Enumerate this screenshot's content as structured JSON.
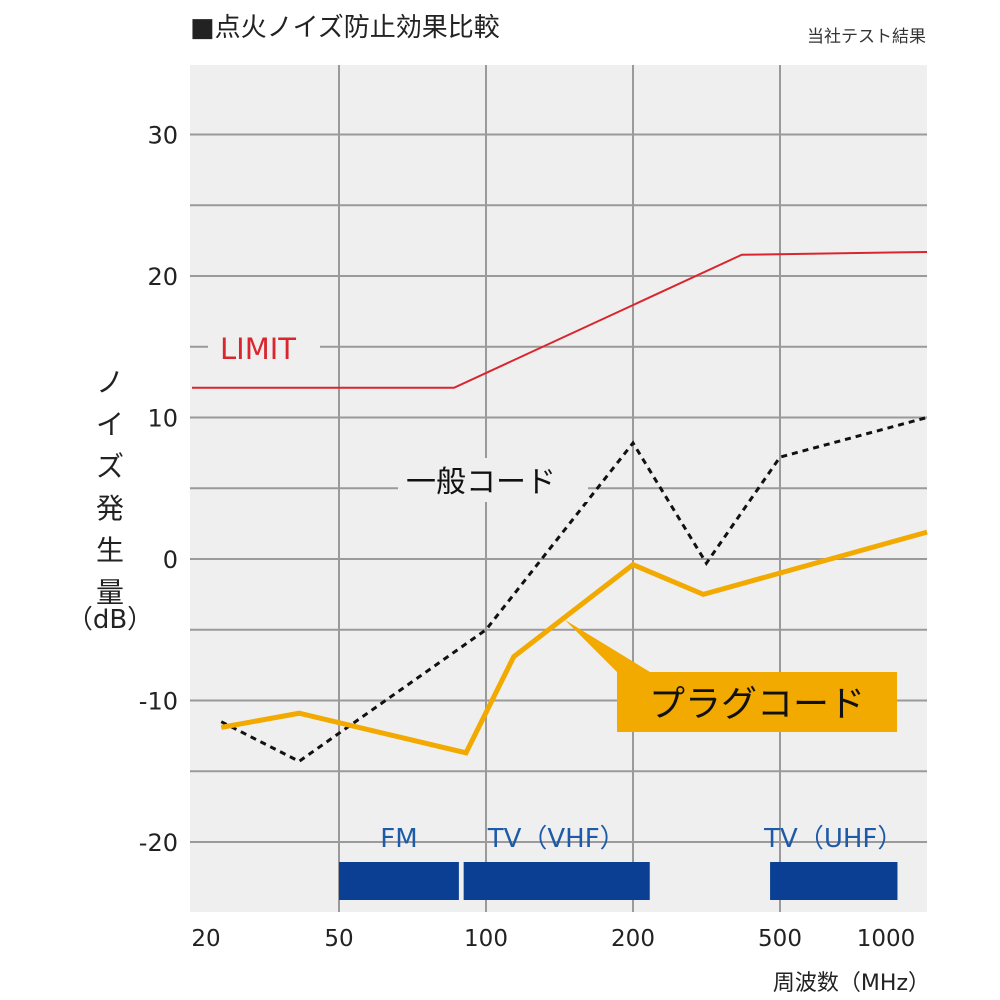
{
  "chart_data": {
    "type": "line",
    "title": "■点火ノイズ防止効果比較",
    "subtitle": "当社テスト結果",
    "xlabel": "周波数（MHz）",
    "ylabel": "ノイズ発生量（dB）",
    "x_scale": "categorical-log (equally spaced ticks)",
    "x_ticks": [
      20,
      50,
      100,
      200,
      500,
      1000
    ],
    "y_ticks": [
      30,
      20,
      10,
      0,
      -10,
      -20
    ],
    "ylim": [
      -25,
      35
    ],
    "grid": true,
    "series": [
      {
        "name": "LIMIT",
        "color": "#d9262e",
        "style": "solid",
        "x": [
          20,
          86,
          394,
          1000
        ],
        "y": [
          12.1,
          12.1,
          21.5,
          21.7
        ]
      },
      {
        "name": "一般コード",
        "color": "#111111",
        "style": "dotted",
        "x": [
          24,
          39,
          100,
          200,
          316,
          500,
          1000
        ],
        "y": [
          -11.5,
          -14.3,
          -5.0,
          8.2,
          -0.3,
          7.2,
          10.0
        ]
      },
      {
        "name": "プラグコード",
        "color": "#f2a900",
        "style": "solid",
        "x": [
          24,
          39,
          91,
          114,
          200,
          310,
          1000
        ],
        "y": [
          -11.9,
          -10.9,
          -13.7,
          -6.9,
          -0.4,
          -2.5,
          1.9
        ]
      }
    ],
    "bands": [
      {
        "label": "FM",
        "from": 50,
        "to": 88
      },
      {
        "label": "TV（VHF）",
        "from": 90,
        "to": 222
      },
      {
        "label": "TV（UHF）",
        "from": 470,
        "to": 870
      }
    ],
    "band_color": "#0b3f94",
    "band_label_color": "#1d5aa8"
  }
}
